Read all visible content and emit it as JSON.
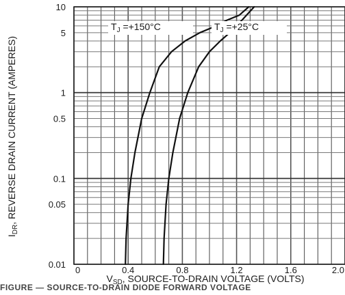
{
  "chart_data": {
    "type": "line",
    "y_scale": "log",
    "xlim": [
      0,
      2.0
    ],
    "ylim": [
      0.01,
      10
    ],
    "x_ticks": [
      "0",
      "0.4",
      "0.8",
      "1.2",
      "1.6",
      "2.0"
    ],
    "y_ticks": [
      {
        "value": 10,
        "label": "10"
      },
      {
        "value": 5,
        "label": "5"
      },
      {
        "value": 1,
        "label": "1"
      },
      {
        "value": 0.5,
        "label": "0.5"
      },
      {
        "value": 0.1,
        "label": "0.1"
      },
      {
        "value": 0.05,
        "label": "0.05"
      },
      {
        "value": 0.01,
        "label": "0.01"
      }
    ],
    "ylabel": {
      "main": "I",
      "sub": "DR",
      "rest": ", REVERSE DRAIN CURRENT (AMPERES)"
    },
    "xlabel": {
      "main": "V",
      "sub": "SD",
      "rest": ", SOURCE-TO-DRAIN VOLTAGE (VOLTS)"
    },
    "grid": true,
    "series": [
      {
        "name": {
          "main": "T",
          "sub": "J",
          "rest": " =+150°C"
        },
        "color": "#111111",
        "x": [
          0.38,
          0.385,
          0.4,
          0.42,
          0.45,
          0.5,
          0.56,
          0.63,
          0.72,
          0.82,
          0.93,
          1.05,
          1.13,
          1.22,
          1.29
        ],
        "y": [
          0.01,
          0.02,
          0.05,
          0.1,
          0.2,
          0.5,
          1,
          2,
          3,
          4,
          5,
          6,
          7,
          8,
          10
        ]
      },
      {
        "name": {
          "main": "T",
          "sub": "J",
          "rest": " =+25°C"
        },
        "color": "#111111",
        "x": [
          0.66,
          0.665,
          0.68,
          0.7,
          0.73,
          0.78,
          0.84,
          0.92,
          1.0,
          1.08,
          1.15,
          1.24,
          1.33
        ],
        "y": [
          0.01,
          0.02,
          0.05,
          0.1,
          0.2,
          0.5,
          1,
          2,
          3,
          4,
          5,
          7,
          10
        ]
      }
    ]
  },
  "caption": "FIGURE — SOURCE-TO-DRAIN DIODE FORWARD VOLTAGE"
}
